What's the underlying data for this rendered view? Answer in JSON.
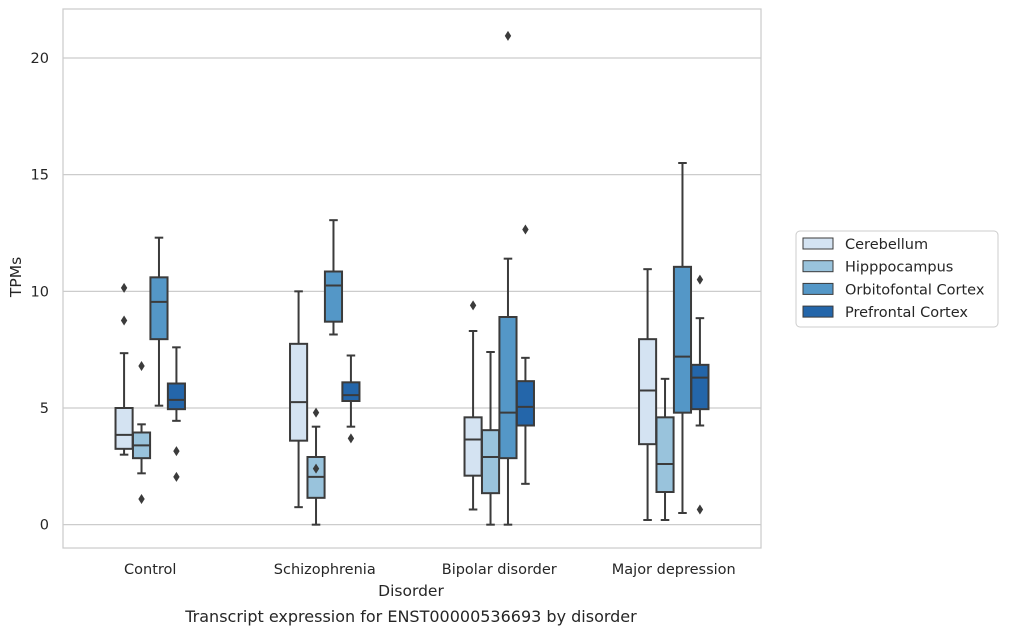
{
  "chart_data": {
    "type": "box",
    "title": "",
    "caption": "Transcript expression for ENST00000536693 by disorder",
    "xlabel": "Disorder",
    "ylabel": "TPMs",
    "ylim": [
      -1,
      22.1
    ],
    "yticks": [
      0,
      5,
      10,
      15,
      20
    ],
    "grid": "horizontal",
    "legend_position": "outside-right",
    "categories": [
      "Control",
      "Schizophrenia",
      "Bipolar disorder",
      "Major depression"
    ],
    "series": [
      {
        "name": "Cerebellum",
        "color": "#d4e3f2",
        "boxes": [
          {
            "whislo": 3.0,
            "q1": 3.25,
            "med": 3.85,
            "q3": 5.0,
            "whishi": 7.35,
            "fliers": [
              8.75,
              10.15
            ]
          },
          {
            "whislo": 0.75,
            "q1": 3.6,
            "med": 5.25,
            "q3": 7.75,
            "whishi": 10.0,
            "fliers": []
          },
          {
            "whislo": 0.65,
            "q1": 2.1,
            "med": 3.65,
            "q3": 4.6,
            "whishi": 8.3,
            "fliers": [
              9.4
            ]
          },
          {
            "whislo": 0.2,
            "q1": 3.45,
            "med": 5.75,
            "q3": 7.95,
            "whishi": 10.95,
            "fliers": []
          }
        ]
      },
      {
        "name": "Hipppocampus",
        "color": "#99c3dc",
        "boxes": [
          {
            "whislo": 2.2,
            "q1": 2.85,
            "med": 3.4,
            "q3": 3.95,
            "whishi": 4.3,
            "fliers": [
              1.1,
              6.8
            ]
          },
          {
            "whislo": 0.0,
            "q1": 1.15,
            "med": 2.05,
            "q3": 2.9,
            "whishi": 4.2,
            "fliers": [
              2.4,
              4.8
            ]
          },
          {
            "whislo": 0.0,
            "q1": 1.35,
            "med": 2.9,
            "q3": 4.05,
            "whishi": 7.4,
            "fliers": []
          },
          {
            "whislo": 0.2,
            "q1": 1.4,
            "med": 2.6,
            "q3": 4.6,
            "whishi": 6.25,
            "fliers": []
          }
        ]
      },
      {
        "name": "Orbitofontal Cortex",
        "color": "#5497c7",
        "boxes": [
          {
            "whislo": 5.1,
            "q1": 7.95,
            "med": 9.55,
            "q3": 10.6,
            "whishi": 12.3,
            "fliers": []
          },
          {
            "whislo": 8.15,
            "q1": 8.7,
            "med": 10.25,
            "q3": 10.85,
            "whishi": 13.05,
            "fliers": []
          },
          {
            "whislo": 0.0,
            "q1": 2.85,
            "med": 4.8,
            "q3": 8.9,
            "whishi": 11.4,
            "fliers": [
              20.95
            ]
          },
          {
            "whislo": 0.5,
            "q1": 4.8,
            "med": 7.2,
            "q3": 11.05,
            "whishi": 15.5,
            "fliers": []
          }
        ]
      },
      {
        "name": "Prefrontal Cortex",
        "color": "#2466aa",
        "boxes": [
          {
            "whislo": 4.45,
            "q1": 4.95,
            "med": 5.35,
            "q3": 6.05,
            "whishi": 7.6,
            "fliers": [
              2.05,
              3.15
            ]
          },
          {
            "whislo": 4.2,
            "q1": 5.3,
            "med": 5.55,
            "q3": 6.1,
            "whishi": 7.25,
            "fliers": [
              3.7
            ]
          },
          {
            "whislo": 1.75,
            "q1": 4.25,
            "med": 5.05,
            "q3": 6.15,
            "whishi": 7.15,
            "fliers": [
              12.65
            ]
          },
          {
            "whislo": 4.25,
            "q1": 4.95,
            "med": 6.3,
            "q3": 6.85,
            "whishi": 8.85,
            "fliers": [
              0.65,
              10.5
            ]
          }
        ]
      }
    ]
  }
}
